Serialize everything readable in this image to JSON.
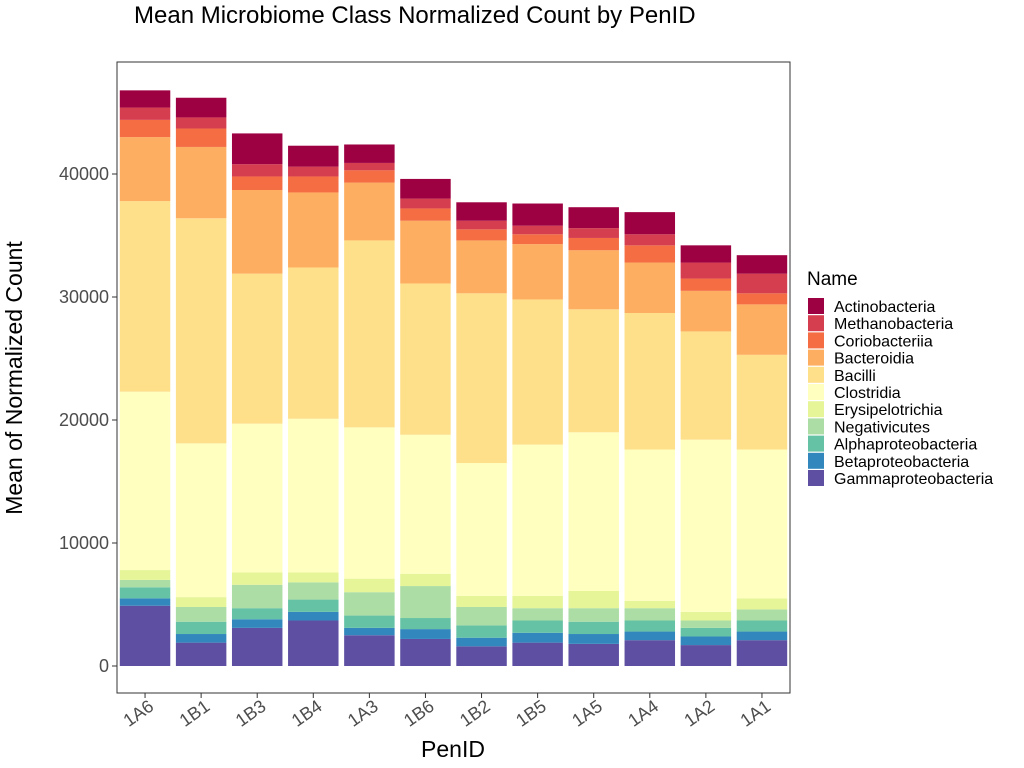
{
  "chart_data": {
    "type": "bar",
    "stacked": true,
    "title": "Mean Microbiome Class Normalized Count by PenID",
    "xlabel": "PenID",
    "ylabel": "Mean of Normalized Count",
    "ylim": [
      -2500,
      49000
    ],
    "yticks": [
      0,
      10000,
      20000,
      30000,
      40000
    ],
    "ytick_labels": [
      "0",
      "10000",
      "20000",
      "30000",
      "40000"
    ],
    "grid": false,
    "legend_title": "Name",
    "legend_position": "right",
    "categories": [
      "1A6",
      "1B1",
      "1B3",
      "1B4",
      "1A3",
      "1B6",
      "1B2",
      "1B5",
      "1A5",
      "1A4",
      "1A2",
      "1A1"
    ],
    "series": [
      {
        "name": "Gammaproteobacteria",
        "color": "#5e4fa2",
        "values": [
          4900,
          1900,
          3100,
          3700,
          2500,
          2200,
          1600,
          1900,
          1800,
          2100,
          1700,
          2100
        ]
      },
      {
        "name": "Betaproteobacteria",
        "color": "#3288bd",
        "values": [
          600,
          700,
          700,
          700,
          600,
          800,
          700,
          800,
          800,
          700,
          700,
          700
        ]
      },
      {
        "name": "Alphaproteobacteria",
        "color": "#66c2a5",
        "values": [
          900,
          1000,
          900,
          1000,
          1000,
          900,
          1000,
          1000,
          1000,
          900,
          700,
          900
        ]
      },
      {
        "name": "Negativicutes",
        "color": "#abdda4",
        "values": [
          600,
          1200,
          1900,
          1400,
          1900,
          2600,
          1500,
          1000,
          1100,
          1000,
          600,
          900
        ]
      },
      {
        "name": "Erysipelotrichia",
        "color": "#e6f598",
        "values": [
          800,
          800,
          1000,
          800,
          1100,
          1000,
          900,
          1000,
          1400,
          600,
          700,
          900
        ]
      },
      {
        "name": "Clostridia",
        "color": "#ffffbf",
        "values": [
          14500,
          12500,
          12100,
          12500,
          12300,
          11300,
          10800,
          12300,
          12900,
          12300,
          14000,
          12100
        ]
      },
      {
        "name": "Bacilli",
        "color": "#fee08b",
        "values": [
          15500,
          18300,
          12200,
          12300,
          15200,
          12300,
          13800,
          11800,
          10000,
          11100,
          8800,
          7700
        ]
      },
      {
        "name": "Bacteroidia",
        "color": "#fdae61",
        "values": [
          5200,
          5800,
          6800,
          6100,
          4700,
          5100,
          4300,
          4500,
          4800,
          4100,
          3300,
          4100
        ]
      },
      {
        "name": "Coriobacteriia",
        "color": "#f46d43",
        "values": [
          1400,
          1500,
          1100,
          1300,
          1000,
          1000,
          900,
          800,
          1000,
          1400,
          1000,
          900
        ]
      },
      {
        "name": "Methanobacteria",
        "color": "#d53e4f",
        "values": [
          1000,
          900,
          1000,
          800,
          600,
          800,
          700,
          700,
          800,
          900,
          1300,
          1600
        ]
      },
      {
        "name": "Actinobacteria",
        "color": "#9e0142",
        "values": [
          1400,
          1600,
          2500,
          1700,
          1500,
          1600,
          1500,
          1800,
          1700,
          1800,
          1400,
          1500
        ]
      }
    ]
  }
}
